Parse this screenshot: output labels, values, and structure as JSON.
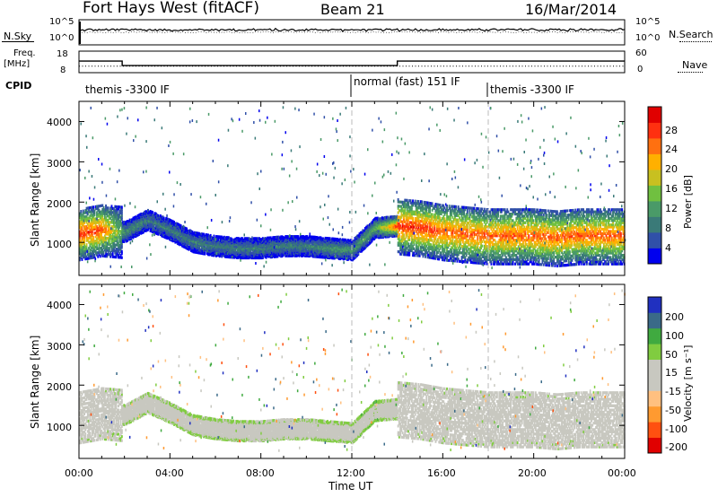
{
  "header": {
    "station": "Fort Hays West (fitACF)",
    "beam": "Beam 21",
    "date": "16/Mar/2014"
  },
  "top_panels": {
    "nsky_label": "N.Sky",
    "nsky_ticks": [
      "10^5",
      "10^0"
    ],
    "nsearch_label": "N.Search",
    "nsearch_ticks": [
      "10^5",
      "10^0"
    ],
    "freq_label_1": "Freq.",
    "freq_label_2": "[MHz]",
    "freq_ticks": [
      "18",
      "8"
    ],
    "nave_label": "Nave",
    "nave_ticks": [
      "60",
      "0"
    ],
    "cpid_label": "CPID",
    "cpid_segments": [
      "themis -3300 IF",
      "normal (fast) 151 IF",
      "themis -3300 IF"
    ]
  },
  "axes": {
    "ylabel": "Slant Range [km]",
    "yticks": [
      "4000",
      "3000",
      "2000",
      "1000"
    ],
    "xticks": [
      "00:00",
      "04:00",
      "08:00",
      "12:00",
      "16:00",
      "20:00",
      "00:00"
    ],
    "xlabel": "Time UT"
  },
  "colorbars": {
    "power": {
      "label": "Power [dB]",
      "ticks": [
        "28",
        "24",
        "20",
        "16",
        "12",
        "8",
        "4"
      ],
      "colors": [
        "#0000ee",
        "#3050a8",
        "#3a7a78",
        "#4a9a68",
        "#70c040",
        "#c8c020",
        "#ffb000",
        "#ff7010",
        "#ff3010",
        "#e00000"
      ]
    },
    "velocity": {
      "label": "Velocity [m s⁻¹]",
      "ticks": [
        "200",
        "100",
        "50",
        "15",
        "-15",
        "-50",
        "-100",
        "-200"
      ],
      "colors": [
        "#e00000",
        "#ff5010",
        "#ff9a30",
        "#ffc080",
        "#c8c8c0",
        "#c8c8c0",
        "#80cc40",
        "#40aa40",
        "#3a6a88",
        "#2030c0"
      ]
    }
  },
  "chart_data": [
    {
      "type": "line",
      "title": "N.Sky / N.Search",
      "x": [
        "00:00",
        "04:00",
        "08:00",
        "12:00",
        "16:00",
        "20:00",
        "24:00"
      ],
      "series": [
        {
          "name": "N.Sky",
          "values": [
            1000,
            1000,
            1000,
            1000,
            1000,
            1000,
            1000
          ]
        },
        {
          "name": "N.Search",
          "values": [
            1000,
            1000,
            1000,
            1000,
            1000,
            1000,
            1000
          ]
        }
      ],
      "ylim": [
        1,
        100000
      ]
    },
    {
      "type": "line",
      "title": "Freq. / Nave",
      "series": [
        {
          "name": "Freq.",
          "segments": [
            [
              0.0,
              1.9,
              13.4
            ],
            [
              1.9,
              14.0,
              11.3
            ],
            [
              14.0,
              24.0,
              13.4
            ]
          ]
        },
        {
          "name": "Nave",
          "segments": [
            [
              0.0,
              24.0,
              18
            ]
          ]
        }
      ],
      "ylim_freq": [
        8,
        18
      ],
      "ylim_nave": [
        0,
        60
      ]
    },
    {
      "type": "heatmap",
      "title": "Power [dB]",
      "xlabel": "Time UT",
      "ylabel": "Slant Range [km]",
      "xlim": [
        0,
        24
      ],
      "ylim": [
        180,
        4500
      ],
      "x": [
        0,
        1,
        2,
        3,
        4,
        5,
        6,
        7,
        8,
        9,
        10,
        11,
        12,
        13,
        14,
        15,
        16,
        17,
        18,
        19,
        20,
        21,
        22,
        23
      ],
      "band_center_km": [
        1250,
        1350,
        1300,
        1600,
        1350,
        1050,
        950,
        900,
        900,
        950,
        950,
        900,
        850,
        1400,
        1450,
        1400,
        1300,
        1250,
        1200,
        1200,
        1200,
        1150,
        1200,
        1200
      ],
      "band_power_db": [
        26,
        24,
        10,
        8,
        8,
        8,
        8,
        8,
        8,
        8,
        8,
        10,
        10,
        12,
        26,
        26,
        24,
        24,
        24,
        24,
        24,
        24,
        24,
        24
      ]
    },
    {
      "type": "heatmap",
      "title": "Velocity [m s-1]",
      "xlabel": "Time UT",
      "ylabel": "Slant Range [km]",
      "xlim": [
        0,
        24
      ],
      "ylim": [
        180,
        4500
      ],
      "x": [
        0,
        1,
        2,
        3,
        4,
        5,
        6,
        7,
        8,
        9,
        10,
        11,
        12,
        13,
        14,
        15,
        16,
        17,
        18,
        19,
        20,
        21,
        22,
        23
      ],
      "band_center_km": [
        1250,
        1350,
        1300,
        1600,
        1350,
        1050,
        950,
        900,
        900,
        950,
        950,
        900,
        850,
        1400,
        1450,
        1400,
        1300,
        1250,
        1200,
        1200,
        1200,
        1150,
        1200,
        1200
      ],
      "band_velocity_ms": [
        0,
        0,
        20,
        20,
        30,
        40,
        40,
        30,
        20,
        20,
        20,
        30,
        40,
        60,
        0,
        0,
        0,
        0,
        0,
        0,
        0,
        0,
        0,
        0
      ]
    }
  ]
}
